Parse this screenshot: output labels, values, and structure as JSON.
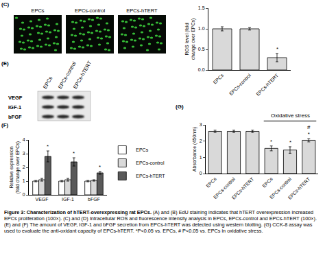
{
  "micrographs": {
    "label": "(C)",
    "titles": [
      "EPCs",
      "EPCs-control",
      "EPCs-hTERT"
    ]
  },
  "blot": {
    "label": "(E)",
    "rows": [
      "VEGF",
      "IGF-1",
      "bFGF"
    ],
    "columns": [
      "EPCs",
      "EPCs-control",
      "EPCs-hTERT"
    ]
  },
  "chart_data": [
    {
      "type": "bar",
      "y_label": "ROS level (fold\nchange over EPCs)",
      "categories": [
        "EPCs",
        "EPCs-control",
        "EPCs-hTERT"
      ],
      "values": [
        1.0,
        1.0,
        0.3
      ],
      "errors": [
        0.05,
        0.03,
        0.1
      ],
      "significance": [
        null,
        null,
        [
          "*"
        ]
      ],
      "color": "#d9d9d9",
      "ylim": [
        0,
        1.5
      ],
      "yticks": [
        {
          "value": 0,
          "label": "0.0"
        },
        0.5,
        {
          "value": 1,
          "label": "1.0"
        },
        1.5
      ],
      "grid": false
    },
    {
      "type": "bar",
      "label": "(F)",
      "y_label": "Relative expression\n(fold change over EPCs)",
      "categories": [
        "VEGF",
        "IGF-1",
        "bFGF"
      ],
      "series": [
        {
          "name": "EPCs",
          "color": "#ffffff",
          "values": [
            1.0,
            1.0,
            1.0
          ],
          "errors": [
            0.05,
            0.05,
            0.05
          ]
        },
        {
          "name": "EPCs-control",
          "color": "#d9d9d9",
          "values": [
            1.1,
            1.1,
            1.05
          ],
          "errors": [
            0.1,
            0.1,
            0.05
          ]
        },
        {
          "name": "EPCs-hTERT",
          "color": "#595959",
          "values": [
            2.8,
            2.4,
            1.6
          ],
          "errors": [
            0.4,
            0.3,
            0.1
          ],
          "significance": [
            [
              "*"
            ],
            [
              "*"
            ],
            [
              "*"
            ]
          ]
        }
      ],
      "ylim": [
        0,
        4
      ],
      "yticks": [
        0,
        1,
        2,
        3,
        4
      ],
      "grid": false,
      "legend": "right"
    },
    {
      "type": "bar",
      "label": "(G)",
      "y_label": "Absorbance (450nm)",
      "categories": [
        "EPCs",
        "EPCs-control",
        "EPCs-hTERT",
        "EPCs",
        "EPCs-control",
        "EPCs-hTERT"
      ],
      "values": [
        2.6,
        2.6,
        2.6,
        1.55,
        1.45,
        2.05
      ],
      "errors": [
        0.07,
        0.07,
        0.07,
        0.15,
        0.2,
        0.1
      ],
      "significance": [
        null,
        null,
        null,
        [
          "*"
        ],
        [
          "*"
        ],
        [
          "#",
          "*"
        ]
      ],
      "groups": [
        {
          "label": "Oxidative stress",
          "from": 3,
          "to": 5
        }
      ],
      "color": "#d9d9d9",
      "ylim": [
        0,
        3
      ],
      "yticks": [
        0,
        1,
        2,
        3
      ],
      "grid": false
    }
  ],
  "caption": {
    "title": "Figure 3: Characterization of hTERT-overexpressing rat EPCs.",
    "text": "(A) and (B) EdU staining indicates that hTERT overexpression increased EPCs proliferation (100×). (C) and (D) Intracellular ROS and fluorescence intensity analysis in EPCs, EPCs-control and EPCs-hTERT (100×). (E) and (F) The amount of VEGF, IGF-1 and bFGF secretion from EPCs-hTERT was detected using western blotting. (G) CCK-8 assay was used to evaluate the anti-oxidant capacity of EPCs-hTERT. *P<0.05 vs. EPCs, # P<0.05 vs. EPCs in oxidative stress."
  }
}
